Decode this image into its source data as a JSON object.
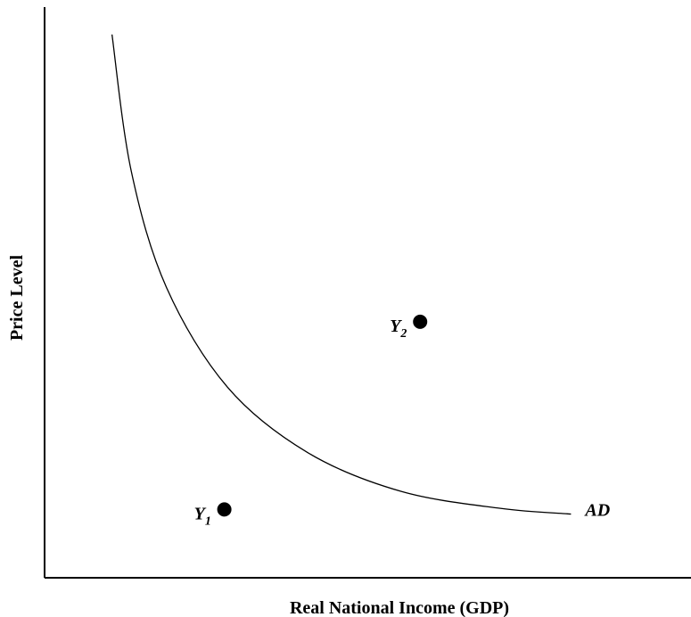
{
  "chart_data": {
    "type": "line",
    "title": "",
    "xlabel": "Real National Income (GDP)",
    "ylabel": "Price Level",
    "xlim": [
      0,
      10
    ],
    "ylim": [
      0,
      10
    ],
    "grid": false,
    "series": [
      {
        "name": "AD",
        "x": [
          1.05,
          1.35,
          1.9,
          2.85,
          4.1,
          5.55,
          7.1,
          8.2
        ],
        "y": [
          9.55,
          7.15,
          5.1,
          3.35,
          2.2,
          1.52,
          1.22,
          1.12
        ]
      }
    ],
    "points": [
      {
        "label": "Y",
        "subscript": "1",
        "x": 2.8,
        "y": 1.2
      },
      {
        "label": "Y",
        "subscript": "2",
        "x": 5.85,
        "y": 4.5
      }
    ]
  }
}
